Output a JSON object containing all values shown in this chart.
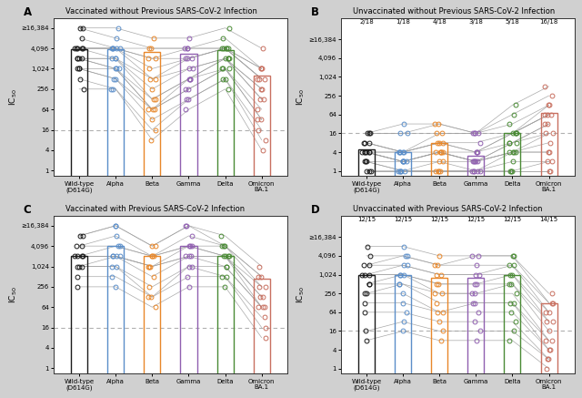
{
  "panels": {
    "A": {
      "title": "Vaccinated without Previous SARS-CoV-2 Infection",
      "label": "A",
      "top_labels": null,
      "bar_medians": [
        3900,
        3900,
        3200,
        2800,
        3700,
        650
      ],
      "bar_colors": [
        "#1a1a1a",
        "#5b8ec9",
        "#e8872a",
        "#9060b0",
        "#4a8a35",
        "#c87060"
      ],
      "subject_data": [
        [
          16384,
          16384,
          8192,
          4096,
          4096,
          4096,
          4096,
          4096,
          2048,
          2048,
          2048,
          2048,
          1024,
          1024,
          1024,
          512,
          256
        ],
        [
          16384,
          8192,
          4096,
          4096,
          4096,
          4096,
          4096,
          2048,
          2048,
          2048,
          1024,
          1024,
          1024,
          512,
          512,
          256,
          256
        ],
        [
          8192,
          4096,
          4096,
          2048,
          2048,
          1024,
          512,
          512,
          256,
          128,
          128,
          64,
          64,
          64,
          32,
          16,
          8
        ],
        [
          8192,
          4096,
          4096,
          4096,
          2048,
          2048,
          2048,
          1024,
          1024,
          512,
          512,
          512,
          256,
          256,
          128,
          128,
          64
        ],
        [
          16384,
          8192,
          4096,
          4096,
          4096,
          4096,
          4096,
          2048,
          2048,
          2048,
          2048,
          1024,
          1024,
          1024,
          512,
          512,
          256
        ],
        [
          4096,
          1024,
          1024,
          1024,
          512,
          512,
          512,
          256,
          256,
          128,
          128,
          64,
          32,
          32,
          16,
          8,
          4
        ]
      ]
    },
    "B": {
      "title": "Unvaccinated without Previous SARS-CoV-2 Infection",
      "label": "B",
      "top_labels": [
        "2/18",
        "1/18",
        "4/18",
        "3/18",
        "5/18",
        "16/18"
      ],
      "bar_medians": [
        5,
        4,
        8,
        3,
        16,
        70
      ],
      "bar_colors": [
        "#1a1a1a",
        "#5b8ec9",
        "#e8872a",
        "#9060b0",
        "#4a8a35",
        "#c87060"
      ],
      "subject_data": [
        [
          16,
          16,
          16,
          8,
          8,
          8,
          4,
          4,
          4,
          4,
          4,
          4,
          2,
          2,
          2,
          1,
          1,
          1
        ],
        [
          32,
          16,
          16,
          4,
          4,
          4,
          4,
          4,
          2,
          2,
          2,
          2,
          2,
          1,
          1,
          1,
          1,
          1
        ],
        [
          32,
          32,
          16,
          16,
          8,
          8,
          8,
          4,
          4,
          4,
          4,
          4,
          2,
          2,
          1,
          1,
          1,
          1
        ],
        [
          16,
          16,
          16,
          16,
          8,
          4,
          4,
          4,
          2,
          2,
          2,
          2,
          2,
          1,
          1,
          1,
          1,
          1
        ],
        [
          128,
          64,
          32,
          16,
          16,
          16,
          16,
          8,
          8,
          8,
          4,
          4,
          4,
          4,
          2,
          1,
          1,
          1
        ],
        [
          512,
          256,
          128,
          128,
          64,
          64,
          64,
          32,
          32,
          16,
          16,
          8,
          4,
          4,
          2,
          2,
          1,
          1
        ]
      ]
    },
    "C": {
      "title": "Vaccinated with Previous SARS-CoV-2 Infection",
      "label": "C",
      "top_labels": null,
      "bar_medians": [
        2048,
        4096,
        2048,
        4096,
        2048,
        450
      ],
      "bar_colors": [
        "#1a1a1a",
        "#5b8ec9",
        "#e8872a",
        "#9060b0",
        "#4a8a35",
        "#c87060"
      ],
      "subject_data": [
        [
          8192,
          8192,
          4096,
          4096,
          2048,
          2048,
          2048,
          2048,
          1024,
          1024,
          1024,
          512,
          256
        ],
        [
          16384,
          16384,
          8192,
          4096,
          4096,
          2048,
          2048,
          2048,
          2048,
          1024,
          1024,
          512,
          256
        ],
        [
          4096,
          4096,
          2048,
          2048,
          2048,
          1024,
          1024,
          1024,
          512,
          256,
          128,
          128,
          64
        ],
        [
          16384,
          16384,
          8192,
          4096,
          4096,
          4096,
          2048,
          2048,
          2048,
          1024,
          1024,
          512,
          256
        ],
        [
          8192,
          4096,
          4096,
          4096,
          2048,
          2048,
          2048,
          2048,
          1024,
          1024,
          512,
          512,
          256
        ],
        [
          1024,
          512,
          512,
          256,
          256,
          128,
          128,
          64,
          64,
          64,
          32,
          16,
          8
        ]
      ]
    },
    "D": {
      "title": "Unvaccinated with Previous SARS-CoV-2 Infection",
      "label": "D",
      "top_labels": [
        "12/15",
        "12/15",
        "12/15",
        "12/15",
        "12/15",
        "14/15"
      ],
      "bar_medians": [
        1024,
        1024,
        800,
        800,
        1024,
        128
      ],
      "bar_colors": [
        "#1a1a1a",
        "#5b8ec9",
        "#e8872a",
        "#9060b0",
        "#4a8a35",
        "#c87060"
      ],
      "subject_data": [
        [
          8192,
          4096,
          2048,
          2048,
          1024,
          1024,
          1024,
          512,
          512,
          256,
          256,
          128,
          64,
          16,
          8
        ],
        [
          8192,
          4096,
          4096,
          2048,
          2048,
          1024,
          1024,
          1024,
          512,
          512,
          256,
          128,
          64,
          32,
          16
        ],
        [
          4096,
          2048,
          2048,
          1024,
          1024,
          512,
          512,
          256,
          256,
          128,
          64,
          64,
          32,
          16,
          8
        ],
        [
          4096,
          4096,
          2048,
          1024,
          1024,
          512,
          512,
          256,
          256,
          128,
          128,
          64,
          32,
          16,
          8
        ],
        [
          4096,
          4096,
          2048,
          2048,
          1024,
          1024,
          512,
          512,
          256,
          128,
          128,
          64,
          32,
          16,
          8
        ],
        [
          256,
          128,
          128,
          64,
          64,
          32,
          32,
          16,
          8,
          8,
          4,
          4,
          2,
          2,
          1
        ]
      ]
    }
  },
  "x_labels": [
    "Wild-type\n(D614G)",
    "Alpha",
    "Beta",
    "Gamma",
    "Delta",
    "Omicron\nBA.1"
  ],
  "y_ticks": [
    1,
    4,
    16,
    64,
    256,
    1024,
    4096,
    16384
  ],
  "y_tick_labels": [
    "1",
    "4",
    "16",
    "64",
    "256",
    "1,024",
    "4,096",
    "≥16,384"
  ],
  "dashed_line_y": 16,
  "ylabel": "IC₅₀",
  "bg_color": "#f5f5f5",
  "outer_bg": "#d8d8d8"
}
